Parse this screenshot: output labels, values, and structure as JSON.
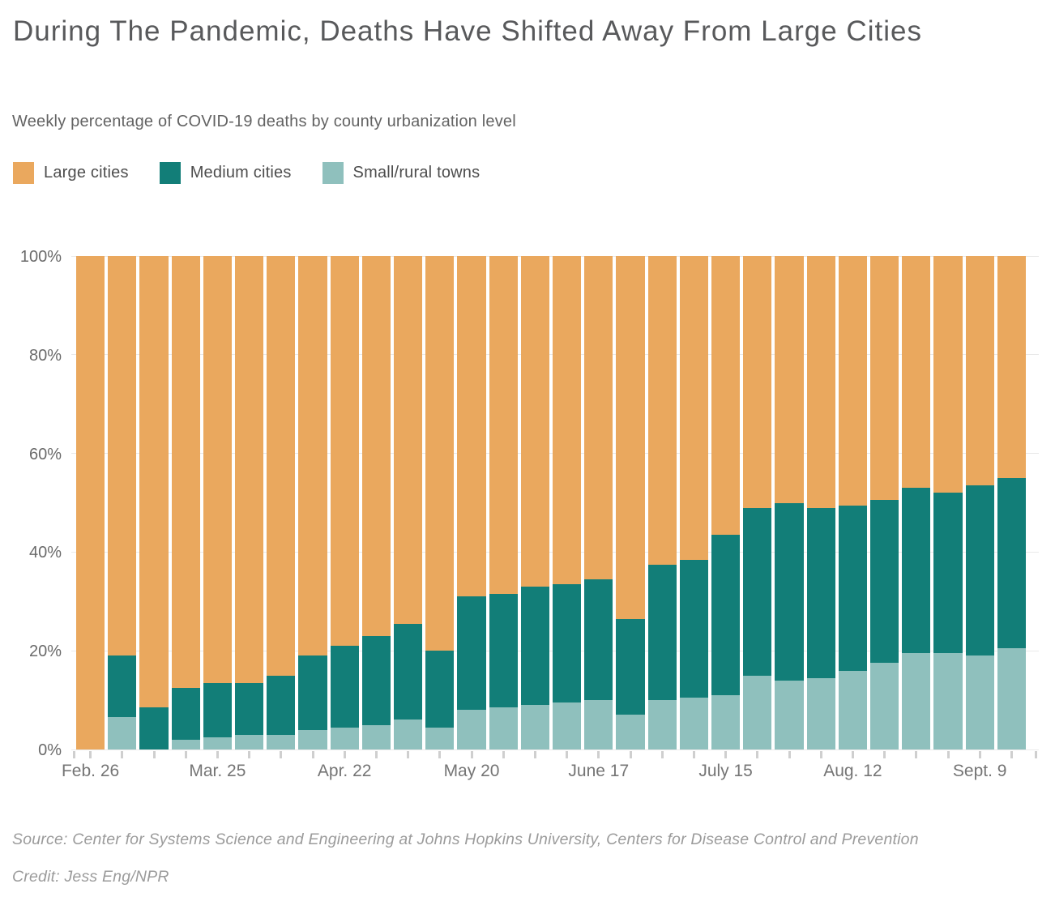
{
  "header": {
    "title": "During The Pandemic, Deaths Have Shifted Away From Large Cities",
    "subtitle": "Weekly percentage of COVID-19 deaths by county urbanization level"
  },
  "legend": {
    "position": "top-left",
    "items": [
      {
        "label": "Large cities",
        "color": "#eaa85e"
      },
      {
        "label": "Medium cities",
        "color": "#127e78"
      },
      {
        "label": "Small/rural towns",
        "color": "#8fc0bd"
      }
    ]
  },
  "chart_data": {
    "type": "bar",
    "stacked": true,
    "bar_count": 30,
    "x_ticks": [
      {
        "bar_index": 0,
        "label": "Feb. 26"
      },
      {
        "bar_index": 4,
        "label": "Mar. 25"
      },
      {
        "bar_index": 8,
        "label": "Apr. 22"
      },
      {
        "bar_index": 12,
        "label": "May 20"
      },
      {
        "bar_index": 16,
        "label": "June 17"
      },
      {
        "bar_index": 20,
        "label": "July 15"
      },
      {
        "bar_index": 24,
        "label": "Aug. 12"
      },
      {
        "bar_index": 28,
        "label": "Sept. 9"
      }
    ],
    "series": [
      {
        "name": "Small/rural towns",
        "color": "#8fc0bd",
        "stack_order": 0,
        "values": [
          0,
          6.5,
          0,
          2,
          2.5,
          3,
          3,
          4,
          4.5,
          5,
          6,
          4.5,
          8,
          8.5,
          9,
          9.5,
          10,
          7,
          10,
          10.5,
          11,
          15,
          14,
          14.5,
          16,
          17.5,
          19.5,
          19.5,
          19,
          20.5
        ]
      },
      {
        "name": "Medium cities",
        "color": "#127e78",
        "stack_order": 1,
        "values": [
          0,
          12.5,
          8.5,
          10.5,
          11,
          10.5,
          12,
          15,
          16.5,
          18,
          19.5,
          15.5,
          23,
          23,
          24,
          24,
          24.5,
          19.5,
          27.5,
          28,
          32.5,
          34,
          36,
          34.5,
          33.5,
          33,
          33.5,
          32.5,
          34.5,
          34.5
        ]
      },
      {
        "name": "Large cities",
        "color": "#eaa85e",
        "stack_order": 2,
        "values": [
          100,
          81,
          91.5,
          87.5,
          86.5,
          86.5,
          85,
          81,
          79,
          77,
          74.5,
          80,
          69,
          68.5,
          67,
          66.5,
          65.5,
          73.5,
          62.5,
          61.5,
          56.5,
          51,
          50,
          51,
          50.5,
          49.5,
          47,
          48,
          46.5,
          45
        ]
      }
    ],
    "ylim": [
      0,
      100
    ],
    "y_ticks": [
      {
        "value": 0,
        "label": "0%"
      },
      {
        "value": 20,
        "label": "20%"
      },
      {
        "value": 40,
        "label": "40%"
      },
      {
        "value": 60,
        "label": "60%"
      },
      {
        "value": 80,
        "label": "80%"
      },
      {
        "value": 100,
        "label": "100%"
      }
    ],
    "grid": true,
    "title": "During The Pandemic, Deaths Have Shifted Away From Large Cities",
    "xlabel": "",
    "ylabel": ""
  },
  "footer": {
    "source": "Source: Center for Systems Science and Engineering at Johns Hopkins University, Centers for Disease Control and Prevention",
    "credit": "Credit: Jess Eng/NPR"
  }
}
